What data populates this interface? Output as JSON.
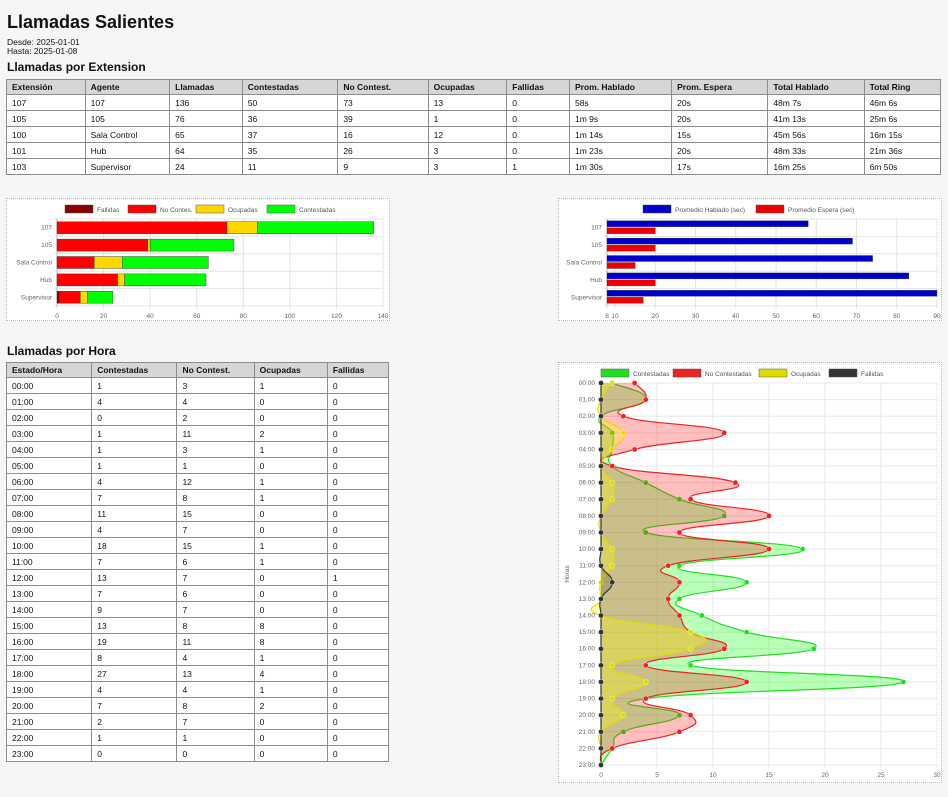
{
  "report": {
    "title": "Llamadas Salientes",
    "desde": "Desde: 2025-01-01",
    "hasta": "Hasta: 2025-01-08",
    "section1": "Llamadas por Extension",
    "section2": "Llamadas por Hora"
  },
  "ext_table": {
    "headers": [
      "Extensión",
      "Agente",
      "Llamadas",
      "Contestadas",
      "No Contest.",
      "Ocupadas",
      "Fallidas",
      "Prom. Hablado",
      "Prom. Espera",
      "Total Hablado",
      "Total Ring"
    ],
    "rows": [
      [
        "107",
        "107",
        "136",
        "50",
        "73",
        "13",
        "0",
        "58s",
        "20s",
        "48m 7s",
        "46m 6s"
      ],
      [
        "105",
        "105",
        "76",
        "36",
        "39",
        "1",
        "0",
        "1m 9s",
        "20s",
        "41m 13s",
        "25m 6s"
      ],
      [
        "100",
        "Sala Control",
        "65",
        "37",
        "16",
        "12",
        "0",
        "1m 14s",
        "15s",
        "45m 56s",
        "16m 15s"
      ],
      [
        "101",
        "Hub",
        "64",
        "35",
        "26",
        "3",
        "0",
        "1m 23s",
        "20s",
        "48m 33s",
        "21m 36s"
      ],
      [
        "103",
        "Supervisor",
        "24",
        "11",
        "9",
        "3",
        "1",
        "1m 30s",
        "17s",
        "16m 25s",
        "6m 50s"
      ]
    ]
  },
  "hour_table": {
    "headers": [
      "Estado/Hora",
      "Contestadas",
      "No Contest.",
      "Ocupadas",
      "Fallidas"
    ],
    "rows": [
      [
        "00:00",
        "1",
        "3",
        "1",
        "0"
      ],
      [
        "01:00",
        "4",
        "4",
        "0",
        "0"
      ],
      [
        "02:00",
        "0",
        "2",
        "0",
        "0"
      ],
      [
        "03:00",
        "1",
        "11",
        "2",
        "0"
      ],
      [
        "04:00",
        "1",
        "3",
        "1",
        "0"
      ],
      [
        "05:00",
        "1",
        "1",
        "0",
        "0"
      ],
      [
        "06:00",
        "4",
        "12",
        "1",
        "0"
      ],
      [
        "07:00",
        "7",
        "8",
        "1",
        "0"
      ],
      [
        "08:00",
        "11",
        "15",
        "0",
        "0"
      ],
      [
        "09:00",
        "4",
        "7",
        "0",
        "0"
      ],
      [
        "10:00",
        "18",
        "15",
        "1",
        "0"
      ],
      [
        "11:00",
        "7",
        "6",
        "1",
        "0"
      ],
      [
        "12:00",
        "13",
        "7",
        "0",
        "1"
      ],
      [
        "13:00",
        "7",
        "6",
        "0",
        "0"
      ],
      [
        "14:00",
        "9",
        "7",
        "0",
        "0"
      ],
      [
        "15:00",
        "13",
        "8",
        "8",
        "0"
      ],
      [
        "16:00",
        "19",
        "11",
        "8",
        "0"
      ],
      [
        "17:00",
        "8",
        "4",
        "1",
        "0"
      ],
      [
        "18:00",
        "27",
        "13",
        "4",
        "0"
      ],
      [
        "19:00",
        "4",
        "4",
        "1",
        "0"
      ],
      [
        "20:00",
        "7",
        "8",
        "2",
        "0"
      ],
      [
        "21:00",
        "2",
        "7",
        "0",
        "0"
      ],
      [
        "22:00",
        "1",
        "1",
        "0",
        "0"
      ],
      [
        "23:00",
        "0",
        "0",
        "0",
        "0"
      ]
    ]
  },
  "chart_data": [
    {
      "type": "bar",
      "orientation": "horizontal",
      "stacked": true,
      "categories": [
        "107",
        "105",
        "Sala Control",
        "Hub",
        "Supervisor"
      ],
      "series": [
        {
          "name": "Fallidas",
          "color": "#8b0000",
          "values": [
            0,
            0,
            0,
            0,
            1
          ]
        },
        {
          "name": "No Contes.",
          "color": "#ff0000",
          "values": [
            73,
            39,
            16,
            26,
            9
          ]
        },
        {
          "name": "Ocupadas",
          "color": "#ffd700",
          "values": [
            13,
            1,
            12,
            3,
            3
          ]
        },
        {
          "name": "Contestadas",
          "color": "#00ff00",
          "values": [
            50,
            36,
            37,
            35,
            11
          ]
        }
      ],
      "xlim": [
        0,
        140
      ],
      "xticks": [
        "0",
        "20",
        "40",
        "60",
        "80",
        "100",
        "120",
        "140"
      ],
      "legend": "top",
      "grid": true
    },
    {
      "type": "bar",
      "orientation": "horizontal",
      "stacked": false,
      "categories": [
        "107",
        "105",
        "Sala Control",
        "Hub",
        "Supervisor"
      ],
      "series": [
        {
          "name": "Promedio Hablado (sec)",
          "color": "#0000cd",
          "values": [
            58,
            69,
            74,
            83,
            90
          ]
        },
        {
          "name": "Promedio Espera (sec)",
          "color": "#ee0000",
          "values": [
            20,
            20,
            15,
            20,
            17
          ]
        }
      ],
      "xlim": [
        8,
        90
      ],
      "xticks": [
        "8",
        "10",
        "20",
        "30",
        "40",
        "50",
        "60",
        "70",
        "80",
        "90"
      ],
      "legend": "top",
      "grid": true
    },
    {
      "type": "line",
      "orientation": "vertical-category",
      "fill": true,
      "ylabel": "Horas",
      "categories": [
        "00:00",
        "01:00",
        "02:00",
        "03:00",
        "04:00",
        "05:00",
        "06:00",
        "07:00",
        "08:00",
        "09:00",
        "10:00",
        "11:00",
        "12:00",
        "13:00",
        "14:00",
        "15:00",
        "16:00",
        "17:00",
        "18:00",
        "19:00",
        "20:00",
        "21:00",
        "22:00",
        "23:00"
      ],
      "series": [
        {
          "name": "Contestadas",
          "color": "#22dd22",
          "fill": "rgba(0,255,0,0.28)",
          "values": [
            1,
            4,
            0,
            1,
            1,
            1,
            4,
            7,
            11,
            4,
            18,
            7,
            13,
            7,
            9,
            13,
            19,
            8,
            27,
            4,
            7,
            2,
            1,
            0
          ]
        },
        {
          "name": "No Contestadas",
          "color": "#ee2222",
          "fill": "rgba(255,0,0,0.25)",
          "values": [
            3,
            4,
            2,
            11,
            3,
            1,
            12,
            8,
            15,
            7,
            15,
            6,
            7,
            6,
            7,
            8,
            11,
            4,
            13,
            4,
            8,
            7,
            1,
            0
          ]
        },
        {
          "name": "Ocupadas",
          "color": "#dddd00",
          "fill": "rgba(255,255,0,0.3)",
          "values": [
            1,
            0,
            0,
            2,
            1,
            0,
            1,
            1,
            0,
            0,
            1,
            1,
            0,
            0,
            0,
            8,
            8,
            1,
            4,
            1,
            2,
            0,
            0,
            0
          ]
        },
        {
          "name": "Fallidas",
          "color": "#333333",
          "fill": "rgba(0,0,0,0.15)",
          "values": [
            0,
            0,
            0,
            0,
            0,
            0,
            0,
            0,
            0,
            0,
            0,
            0,
            1,
            0,
            0,
            0,
            0,
            0,
            0,
            0,
            0,
            0,
            0,
            0
          ]
        }
      ],
      "xlim": [
        0,
        30
      ],
      "xticks": [
        "0",
        "5",
        "10",
        "15",
        "20",
        "25",
        "30"
      ],
      "legend": "top",
      "grid": true
    }
  ]
}
